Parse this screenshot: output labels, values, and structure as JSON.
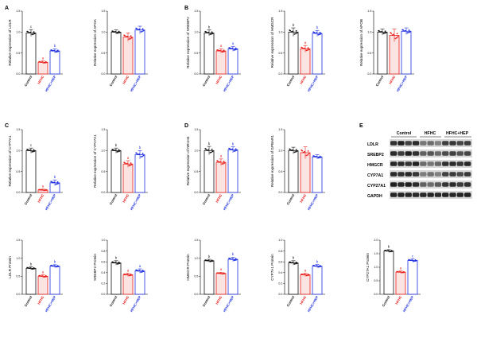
{
  "groups": [
    "Control",
    "HFHC",
    "HFHC+HEP"
  ],
  "colors": {
    "Control": "#111111",
    "HFHC": "#e8211d",
    "HFHC+HEP": "#1f2fe0"
  },
  "panel_labels": [
    "A",
    "B",
    "C",
    "D",
    "E"
  ],
  "blot": {
    "header": [
      "Control",
      "HFHC",
      "HFHC+HEP"
    ],
    "rows": [
      "LDLR",
      "SREBP2",
      "HMGCR",
      "CYP7A1",
      "CYP27A1",
      "GAPDH"
    ]
  },
  "chart_data": [
    {
      "type": "bar",
      "ylabel": "Relative expression of LDLR",
      "ylim": [
        0,
        1.5
      ],
      "yticks": [
        "0.0",
        "0.5",
        "1.0",
        "1.5"
      ],
      "categories": [
        "Control",
        "HFHC",
        "HFHC+HEP"
      ],
      "values": [
        0.98,
        0.28,
        0.55
      ],
      "errors": [
        0.08,
        0.03,
        0.05
      ],
      "letters": [
        "c",
        "a",
        "b"
      ]
    },
    {
      "type": "bar",
      "ylabel": "Relative expression of APOA",
      "ylim": [
        0,
        1.5
      ],
      "yticks": [
        "0.0",
        "0.5",
        "1.0",
        "1.5"
      ],
      "categories": [
        "Control",
        "HFHC",
        "HFHC+HEP"
      ],
      "values": [
        1.0,
        0.88,
        1.05
      ],
      "errors": [
        0.05,
        0.1,
        0.09
      ],
      "letters": [
        "",
        "",
        ""
      ]
    },
    {
      "type": "bar",
      "ylabel": "Relative expression of SREBP2",
      "ylim": [
        0,
        1.5
      ],
      "yticks": [
        "0.0",
        "0.5",
        "1.0",
        "1.5"
      ],
      "categories": [
        "Control",
        "HFHC",
        "HFHC+HEP"
      ],
      "values": [
        0.98,
        0.55,
        0.6
      ],
      "errors": [
        0.07,
        0.05,
        0.06
      ],
      "letters": [
        "b",
        "a",
        "a"
      ]
    },
    {
      "type": "bar",
      "ylabel": "Relative expression of HMGCR",
      "ylim": [
        0,
        1.5
      ],
      "yticks": [
        "0.0",
        "0.5",
        "1.0",
        "1.5"
      ],
      "categories": [
        "Control",
        "HFHC",
        "HFHC+HEP"
      ],
      "values": [
        1.0,
        0.6,
        0.97
      ],
      "errors": [
        0.1,
        0.08,
        0.07
      ],
      "letters": [
        "b",
        "a",
        "b"
      ]
    },
    {
      "type": "bar",
      "ylabel": "Relative expression of APOB",
      "ylim": [
        0,
        1.5
      ],
      "yticks": [
        "0.0",
        "0.5",
        "1.0",
        "1.5"
      ],
      "categories": [
        "Control",
        "HFHC",
        "HFHC+HEP"
      ],
      "values": [
        1.0,
        0.92,
        1.02
      ],
      "errors": [
        0.07,
        0.15,
        0.08
      ],
      "letters": [
        "",
        "",
        ""
      ]
    },
    {
      "type": "bar",
      "ylabel": "Relative expression of CYP7A1",
      "ylim": [
        0,
        1.5
      ],
      "yticks": [
        "0.0",
        "0.5",
        "1.0",
        "1.5"
      ],
      "categories": [
        "Control",
        "HFHC",
        "HFHC+HEP"
      ],
      "values": [
        1.0,
        0.06,
        0.23
      ],
      "errors": [
        0.06,
        0.02,
        0.07
      ],
      "letters": [
        "c",
        "a",
        "b"
      ]
    },
    {
      "type": "bar",
      "ylabel": "Relative expression of CYP27A1",
      "ylim": [
        0,
        1.5
      ],
      "yticks": [
        "0.0",
        "0.5",
        "1.0",
        "1.5"
      ],
      "categories": [
        "Control",
        "HFHC",
        "HFHC+HEP"
      ],
      "values": [
        1.0,
        0.68,
        0.9
      ],
      "errors": [
        0.06,
        0.08,
        0.1
      ],
      "letters": [
        "b",
        "a",
        "b"
      ]
    },
    {
      "type": "bar",
      "ylabel": "Relative expression of NR1H4",
      "ylim": [
        0,
        1.5
      ],
      "yticks": [
        "0.0",
        "0.5",
        "1.0",
        "1.5"
      ],
      "categories": [
        "Control",
        "HFHC",
        "HFHC+HEP"
      ],
      "values": [
        1.0,
        0.72,
        1.02
      ],
      "errors": [
        0.1,
        0.08,
        0.07
      ],
      "letters": [
        "b",
        "a",
        "b"
      ]
    },
    {
      "type": "bar",
      "ylabel": "Relative expression of GPBAR1",
      "ylim": [
        0,
        1.5
      ],
      "yticks": [
        "0.0",
        "0.5",
        "1.0",
        "1.5"
      ],
      "categories": [
        "Control",
        "HFHC",
        "HFHC+HEP"
      ],
      "values": [
        1.0,
        0.95,
        0.85
      ],
      "errors": [
        0.08,
        0.14,
        0.05
      ],
      "letters": [
        "",
        "",
        ""
      ]
    },
    {
      "type": "bar",
      "ylabel": "LDLR Protein",
      "ylim": [
        0,
        1.5
      ],
      "yticks": [
        "0.0",
        "0.5",
        "1.0",
        "1.5"
      ],
      "categories": [
        "Control",
        "HFHC",
        "HFHC+HEP"
      ],
      "values": [
        0.72,
        0.5,
        0.78
      ],
      "errors": [
        0.04,
        0.04,
        0.04
      ],
      "letters": [
        "b",
        "a",
        "b"
      ]
    },
    {
      "type": "bar",
      "ylabel": "SREBP2 Protein",
      "ylim": [
        0,
        1.0
      ],
      "yticks": [
        "0.0",
        "0.2",
        "0.4",
        "0.6",
        "0.8",
        "1.0"
      ],
      "categories": [
        "Control",
        "HFHC",
        "HFHC+HEP"
      ],
      "values": [
        0.58,
        0.36,
        0.43
      ],
      "errors": [
        0.04,
        0.03,
        0.04
      ],
      "letters": [
        "b",
        "a",
        "a"
      ]
    },
    {
      "type": "bar",
      "ylabel": "HMGCR Protein",
      "ylim": [
        0,
        1.5
      ],
      "yticks": [
        "0.0",
        "0.5",
        "1.0",
        "1.5"
      ],
      "categories": [
        "Control",
        "HFHC",
        "HFHC+HEP"
      ],
      "values": [
        0.93,
        0.58,
        0.97
      ],
      "errors": [
        0.04,
        0.03,
        0.06
      ],
      "letters": [
        "b",
        "a",
        "b"
      ]
    },
    {
      "type": "bar",
      "ylabel": "CYP7A1 Protein",
      "ylim": [
        0,
        1.0
      ],
      "yticks": [
        "0.0",
        "0.2",
        "0.4",
        "0.6",
        "0.8",
        "1.0"
      ],
      "categories": [
        "Control",
        "HFHC",
        "HFHC+HEP"
      ],
      "values": [
        0.58,
        0.36,
        0.52
      ],
      "errors": [
        0.04,
        0.03,
        0.03
      ],
      "letters": [
        "b",
        "a",
        "b"
      ]
    },
    {
      "type": "bar",
      "ylabel": "CYP27A1 Protein",
      "ylim": [
        0,
        2.0
      ],
      "yticks": [
        "0.0",
        "0.5",
        "1.0",
        "1.5",
        "2.0"
      ],
      "categories": [
        "Control",
        "HFHC",
        "HFHC+HEP"
      ],
      "values": [
        1.6,
        0.82,
        1.25
      ],
      "errors": [
        0.05,
        0.04,
        0.06
      ],
      "letters": [
        "b",
        "a",
        "c"
      ]
    }
  ]
}
